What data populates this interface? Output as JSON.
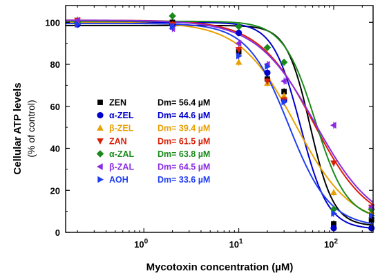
{
  "chart_data": {
    "type": "scatter",
    "xlabel": "Mycotoxin concentration (µM)",
    "ylabel": "Cellular ATP levels",
    "ylabel_sub": "(% of control)",
    "x_scale": "log",
    "xlim": [
      0.15,
      260
    ],
    "ylim": [
      0,
      108
    ],
    "y_ticks": [
      0,
      20,
      40,
      60,
      80,
      100
    ],
    "x_ticks": [
      {
        "value": 1,
        "label": "10",
        "exp": "0"
      },
      {
        "value": 10,
        "label": "10",
        "exp": "1"
      },
      {
        "value": 100,
        "label": "10",
        "exp": "2"
      }
    ],
    "grid": false,
    "legend_position": "center-left",
    "series": [
      {
        "name": "ZEN",
        "dm": "Dm= 56.4 µM",
        "color": "#000000",
        "marker": "square",
        "x": [
          0.2,
          2,
          10,
          20,
          30,
          100,
          250
        ],
        "y": [
          100,
          100,
          86,
          73,
          67,
          4,
          6
        ]
      },
      {
        "name": "α-ZEL",
        "dm": "Dm= 44.6 µM",
        "color": "#0000cc",
        "marker": "circle",
        "x": [
          0.2,
          2,
          10,
          20,
          30,
          100,
          250
        ],
        "y": [
          99,
          99,
          95,
          76,
          63,
          2,
          2
        ]
      },
      {
        "name": "β-ZEL",
        "dm": "Dm= 39.4 µM",
        "color": "#e8a000",
        "marker": "triangle-up",
        "x": [
          0.2,
          2,
          10,
          20,
          30,
          100,
          250
        ],
        "y": [
          100,
          98,
          81,
          71,
          65,
          19,
          10
        ]
      },
      {
        "name": "ZAN",
        "dm": "Dm= 61.5 µM",
        "color": "#d81e05",
        "marker": "triangle-down",
        "x": [
          0.2,
          2,
          10,
          20,
          30,
          100,
          250
        ],
        "y": [
          101,
          99,
          87,
          72,
          63,
          33,
          12
        ]
      },
      {
        "name": "α-ZAL",
        "dm": "Dm= 63.8 µM",
        "color": "#1a8a1a",
        "marker": "diamond",
        "x": [
          0.2,
          2,
          10,
          20,
          30,
          100,
          250
        ],
        "y": [
          100,
          103,
          98,
          88,
          81,
          11,
          11
        ]
      },
      {
        "name": "β-ZAL",
        "dm": "Dm= 64.5 µM",
        "color": "#8a2be2",
        "marker": "triangle-left",
        "x": [
          0.2,
          2,
          10,
          20,
          30,
          100,
          250
        ],
        "y": [
          101,
          97,
          90,
          80,
          72,
          51,
          12
        ]
      },
      {
        "name": "AOH",
        "dm": "Dm= 33.6 µM",
        "color": "#1f3df0",
        "marker": "triangle-right",
        "x": [
          0.2,
          2,
          10,
          20,
          30,
          100,
          250
        ],
        "y": [
          99,
          98,
          84,
          79,
          62,
          9,
          8
        ]
      }
    ],
    "fits": [
      {
        "series": "ZEN",
        "top": 98.5,
        "bottom": 3,
        "dm": 56.4,
        "m": 3.5
      },
      {
        "series": "α-ZEL",
        "top": 100,
        "bottom": 1.5,
        "dm": 44.6,
        "m": 3.0
      },
      {
        "series": "β-ZEL",
        "top": 100,
        "bottom": 3,
        "dm": 39.4,
        "m": 1.5
      },
      {
        "series": "ZAN",
        "top": 101,
        "bottom": 3,
        "dm": 61.5,
        "m": 1.5
      },
      {
        "series": "α-ZAL",
        "top": 100.5,
        "bottom": 6,
        "dm": 63.8,
        "m": 2.6
      },
      {
        "series": "β-ZAL",
        "top": 101,
        "bottom": 2,
        "dm": 64.5,
        "m": 1.4
      },
      {
        "series": "AOH",
        "top": 99.5,
        "bottom": 2.5,
        "dm": 33.6,
        "m": 2.0
      }
    ]
  }
}
